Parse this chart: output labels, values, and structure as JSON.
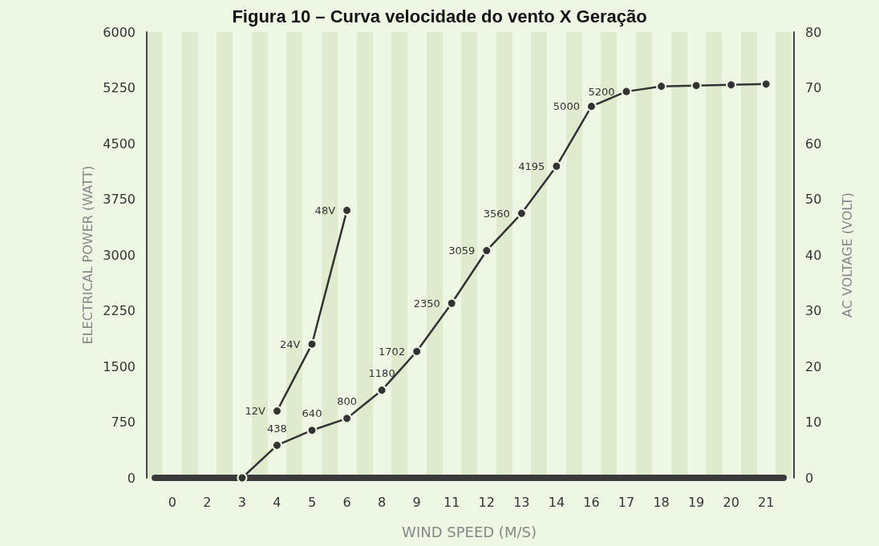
{
  "chart_data": {
    "type": "line",
    "title": "Figura 10 – Curva velocidade do vento X Geração",
    "xlabel": "WIND SPEED (M/S)",
    "ylabel": "ELECTRICAL POWER (WATT)",
    "y2label": "AC VOLTAGE (VOLT)",
    "categories": [
      "0",
      "2",
      "3",
      "4",
      "5",
      "6",
      "8",
      "9",
      "11",
      "12",
      "13",
      "14",
      "16",
      "17",
      "18",
      "19",
      "20",
      "21"
    ],
    "series": [
      {
        "color": "#333333",
        "values": [
          null,
          null,
          0,
          438,
          640,
          800,
          1180,
          1702,
          2350,
          3059,
          3560,
          4195,
          5000,
          5200,
          5270,
          5280,
          5290,
          5300
        ],
        "value_labels": [
          null,
          null,
          null,
          "438",
          "640",
          "800",
          "1180",
          "1702",
          "2350",
          "3059",
          "3560",
          "4195",
          "5000",
          "5200",
          null,
          null,
          null,
          null
        ]
      },
      {
        "color": "#333333",
        "axis": "y2",
        "values": [
          null,
          null,
          null,
          12,
          24,
          48,
          null,
          null,
          null,
          null,
          null,
          null,
          null,
          null,
          null,
          null,
          null,
          null
        ],
        "value_labels": [
          null,
          null,
          null,
          "12V",
          "24V",
          "48V",
          null,
          null,
          null,
          null,
          null,
          null,
          null,
          null,
          null,
          null,
          null,
          null
        ]
      }
    ],
    "ylim": [
      0,
      6000
    ],
    "yticks": [
      0,
      750,
      1500,
      2250,
      3000,
      3750,
      4500,
      5250,
      6000
    ],
    "y2lim": [
      0,
      80
    ],
    "y2ticks": [
      0,
      10,
      20,
      30,
      40,
      50,
      60,
      70,
      80
    ],
    "grid": "x",
    "marker": "circle",
    "line_style": "solid"
  }
}
